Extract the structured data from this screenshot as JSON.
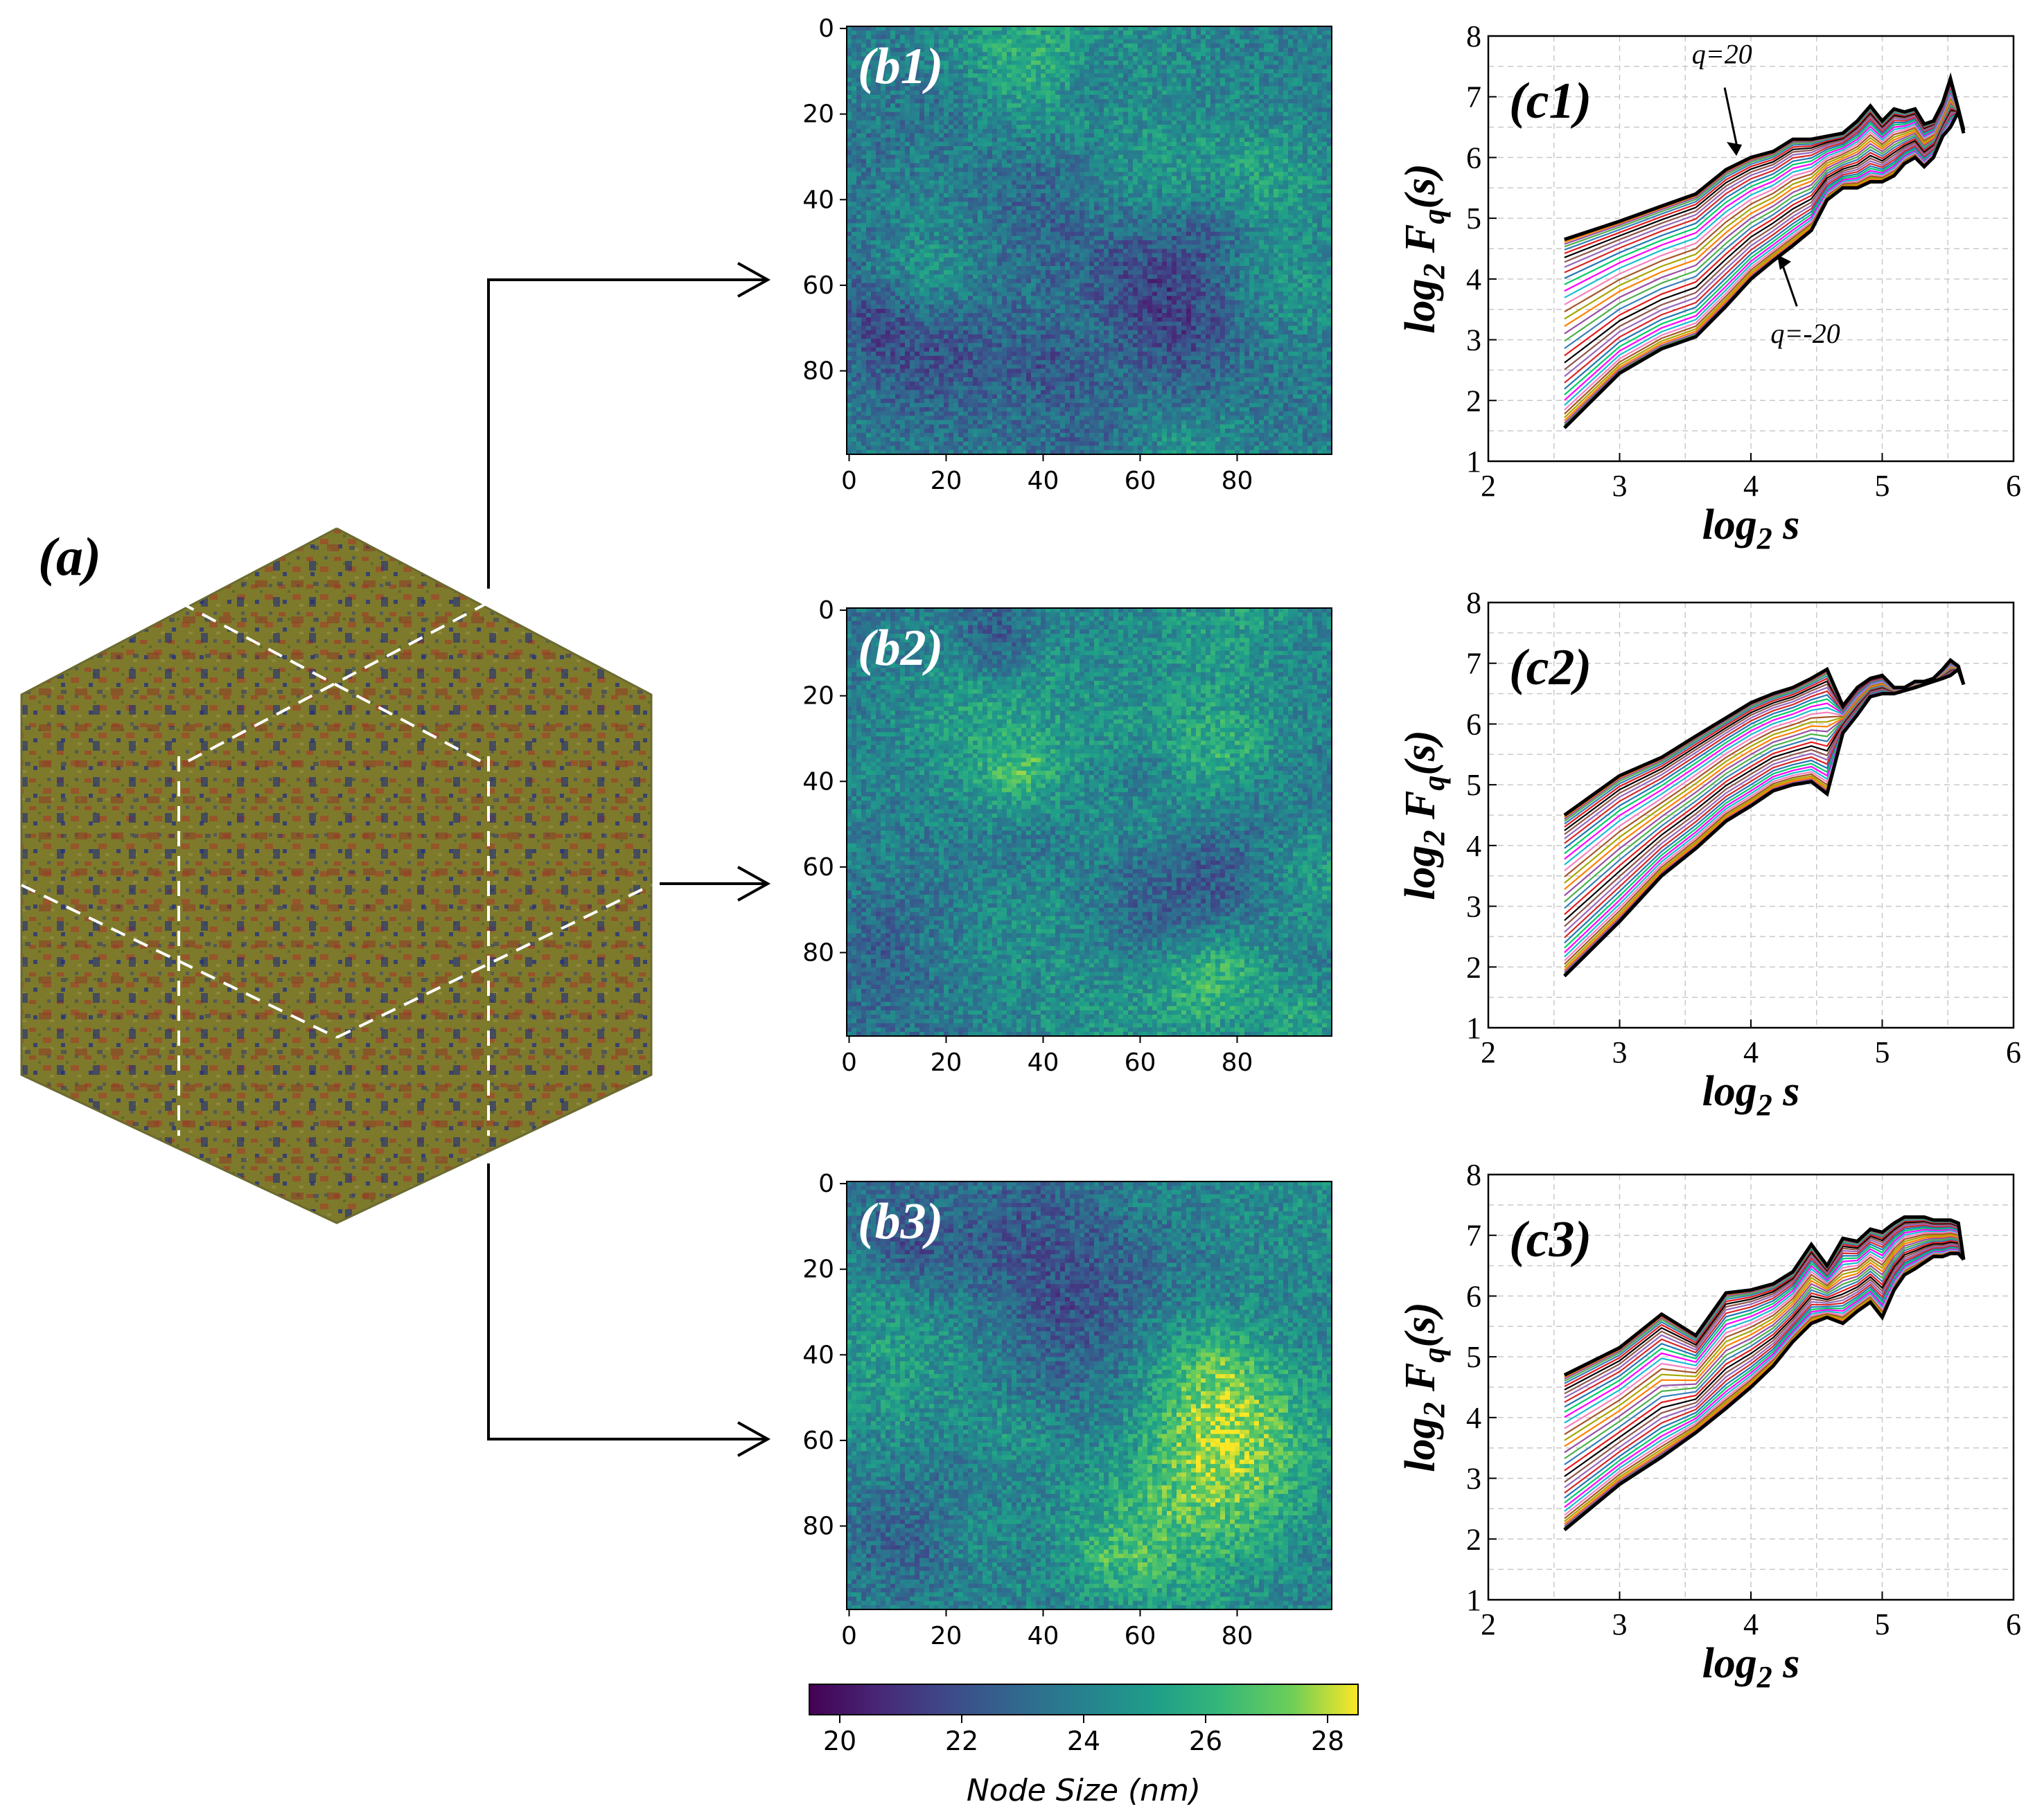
{
  "panel_a": {
    "label": "(a)"
  },
  "colorbar": {
    "label": "Node Size (nm)",
    "ticks": [
      "20",
      "22",
      "24",
      "26",
      "28"
    ],
    "min": 19.5,
    "max": 28.5,
    "colormap": "viridis"
  },
  "chart_data": [
    {
      "type": "heatmap",
      "label": "(b1)",
      "xlim": [
        0,
        100
      ],
      "ylim": [
        100,
        0
      ],
      "xticks": [
        "0",
        "20",
        "40",
        "60",
        "80"
      ],
      "yticks": [
        "0",
        "20",
        "40",
        "60",
        "80"
      ],
      "value_range": [
        20,
        28
      ],
      "zlabel": "Node Size (nm)"
    },
    {
      "type": "heatmap",
      "label": "(b2)",
      "xlim": [
        0,
        100
      ],
      "ylim": [
        100,
        0
      ],
      "xticks": [
        "0",
        "20",
        "40",
        "60",
        "80"
      ],
      "yticks": [
        "0",
        "20",
        "40",
        "60",
        "80"
      ],
      "value_range": [
        20,
        28
      ],
      "zlabel": "Node Size (nm)"
    },
    {
      "type": "heatmap",
      "label": "(b3)",
      "xlim": [
        0,
        100
      ],
      "ylim": [
        100,
        0
      ],
      "xticks": [
        "0",
        "20",
        "40",
        "60",
        "80"
      ],
      "yticks": [
        "0",
        "20",
        "40",
        "60",
        "80"
      ],
      "value_range": [
        20,
        28
      ],
      "zlabel": "Node Size (nm)"
    },
    {
      "type": "line",
      "label": "(c1)",
      "xlabel": "log2 s",
      "ylabel": "log2 Fq(s)",
      "xlim": [
        2,
        6
      ],
      "ylim": [
        1,
        8
      ],
      "xticks": [
        "2",
        "3",
        "4",
        "5",
        "6"
      ],
      "yticks": [
        "1",
        "2",
        "3",
        "4",
        "5",
        "6",
        "7",
        "8"
      ],
      "q_range": [
        -20,
        20
      ],
      "n_curves": 41,
      "x": [
        2.58,
        3.0,
        3.32,
        3.58,
        3.81,
        4.0,
        4.17,
        4.32,
        4.46,
        4.58,
        4.7,
        4.81,
        4.91,
        5.0,
        5.09,
        5.17,
        5.25,
        5.32,
        5.39,
        5.46,
        5.52,
        5.58,
        5.62
      ],
      "series": [
        {
          "name": "q=20",
          "values": [
            4.65,
            4.95,
            5.2,
            5.4,
            5.8,
            6.0,
            6.1,
            6.3,
            6.3,
            6.35,
            6.4,
            6.6,
            6.85,
            6.6,
            6.8,
            6.75,
            6.8,
            6.55,
            6.6,
            6.9,
            7.3,
            6.8,
            6.45
          ]
        },
        {
          "name": "q=-20",
          "values": [
            1.55,
            2.45,
            2.85,
            3.05,
            3.55,
            4.0,
            4.3,
            4.55,
            4.8,
            5.3,
            5.5,
            5.5,
            5.6,
            5.6,
            5.7,
            5.9,
            6.0,
            5.85,
            6.0,
            6.35,
            6.5,
            6.75,
            6.4
          ]
        }
      ],
      "annotations": [
        {
          "text": "q=20",
          "x": 3.9,
          "y": 6.05
        },
        {
          "text": "q=-20",
          "x": 4.2,
          "y": 4.4
        }
      ]
    },
    {
      "type": "line",
      "label": "(c2)",
      "xlabel": "log2 s",
      "ylabel": "log2 Fq(s)",
      "xlim": [
        2,
        6
      ],
      "ylim": [
        1,
        8
      ],
      "xticks": [
        "2",
        "3",
        "4",
        "5",
        "6"
      ],
      "yticks": [
        "1",
        "2",
        "3",
        "4",
        "5",
        "6",
        "7",
        "8"
      ],
      "q_range": [
        -20,
        20
      ],
      "n_curves": 41,
      "x": [
        2.58,
        3.0,
        3.32,
        3.58,
        3.81,
        4.0,
        4.17,
        4.32,
        4.46,
        4.58,
        4.7,
        4.81,
        4.91,
        5.0,
        5.09,
        5.17,
        5.25,
        5.32,
        5.39,
        5.46,
        5.52,
        5.58,
        5.62
      ],
      "series": [
        {
          "name": "q=20",
          "values": [
            4.5,
            5.15,
            5.45,
            5.8,
            6.1,
            6.35,
            6.5,
            6.6,
            6.75,
            6.9,
            6.3,
            6.6,
            6.75,
            6.8,
            6.6,
            6.6,
            6.7,
            6.7,
            6.75,
            6.9,
            7.05,
            6.95,
            6.65
          ]
        },
        {
          "name": "q=-20",
          "values": [
            1.85,
            2.75,
            3.5,
            3.95,
            4.4,
            4.65,
            4.9,
            5.0,
            5.05,
            4.85,
            5.85,
            6.15,
            6.45,
            6.5,
            6.5,
            6.55,
            6.6,
            6.65,
            6.7,
            6.75,
            6.8,
            6.9,
            6.65
          ]
        }
      ]
    },
    {
      "type": "line",
      "label": "(c3)",
      "xlabel": "log2 s",
      "ylabel": "log2 Fq(s)",
      "xlim": [
        2,
        6
      ],
      "ylim": [
        1,
        8
      ],
      "xticks": [
        "2",
        "3",
        "4",
        "5",
        "6"
      ],
      "yticks": [
        "1",
        "2",
        "3",
        "4",
        "5",
        "6",
        "7",
        "8"
      ],
      "q_range": [
        -20,
        20
      ],
      "n_curves": 41,
      "x": [
        2.58,
        3.0,
        3.32,
        3.58,
        3.81,
        4.0,
        4.17,
        4.32,
        4.46,
        4.58,
        4.7,
        4.81,
        4.91,
        5.0,
        5.09,
        5.17,
        5.25,
        5.32,
        5.39,
        5.46,
        5.52,
        5.58,
        5.62
      ],
      "series": [
        {
          "name": "q=20",
          "values": [
            4.7,
            5.15,
            5.7,
            5.35,
            6.05,
            6.1,
            6.2,
            6.4,
            6.85,
            6.5,
            6.95,
            6.9,
            7.1,
            7.05,
            7.2,
            7.3,
            7.3,
            7.3,
            7.25,
            7.25,
            7.25,
            7.2,
            6.6
          ]
        },
        {
          "name": "q=-20",
          "values": [
            2.15,
            2.9,
            3.35,
            3.75,
            4.15,
            4.5,
            4.85,
            5.25,
            5.55,
            5.65,
            5.55,
            5.75,
            5.9,
            5.65,
            6.1,
            6.35,
            6.45,
            6.55,
            6.65,
            6.65,
            6.7,
            6.7,
            6.6
          ]
        }
      ]
    }
  ]
}
